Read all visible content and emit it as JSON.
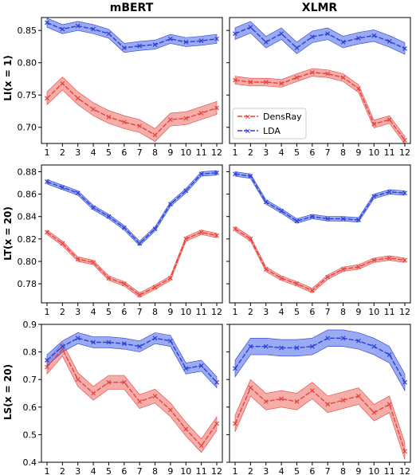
{
  "colors": {
    "densray": "#e8423c",
    "lda": "#2a3fd6",
    "densray_band": "#f08a85",
    "lda_band": "#6f86ee"
  },
  "column_titles": [
    "mBERT",
    "XLMR"
  ],
  "row_labels": [
    "LI(x = 1)",
    "LT(x = 20)",
    "LS(x = 20)"
  ],
  "legend": {
    "entries": [
      "DensRay",
      "LDA"
    ],
    "placement": "lower-left",
    "panel": 1
  },
  "chart_data": [
    {
      "type": "line",
      "panel": "r0c0",
      "x": [
        1,
        2,
        3,
        4,
        5,
        6,
        7,
        8,
        9,
        10,
        11,
        12
      ],
      "ylim": [
        0.675,
        0.87
      ],
      "yticks": [
        0.7,
        0.75,
        0.8,
        0.85
      ],
      "ytick_labels": [
        "0.70",
        "0.75",
        "0.80",
        "0.85"
      ],
      "series": [
        {
          "name": "DensRay",
          "values": [
            0.745,
            0.768,
            0.745,
            0.728,
            0.716,
            0.708,
            0.702,
            0.688,
            0.712,
            0.714,
            0.722,
            0.73
          ],
          "band": 0.01
        },
        {
          "name": "LDA",
          "values": [
            0.862,
            0.852,
            0.857,
            0.852,
            0.845,
            0.823,
            0.826,
            0.828,
            0.837,
            0.832,
            0.834,
            0.837
          ],
          "band": 0.007
        }
      ]
    },
    {
      "type": "line",
      "panel": "r0c1",
      "x": [
        1,
        2,
        3,
        4,
        5,
        6,
        7,
        8,
        9,
        10,
        11,
        12
      ],
      "ylim": [
        0.675,
        0.87
      ],
      "yticks": [
        0.7,
        0.75,
        0.8,
        0.85
      ],
      "ytick_labels": [],
      "series": [
        {
          "name": "DensRay",
          "values": [
            0.773,
            0.77,
            0.77,
            0.768,
            0.777,
            0.785,
            0.783,
            0.777,
            0.76,
            0.705,
            0.712,
            0.68
          ],
          "band": 0.006
        },
        {
          "name": "LDA",
          "values": [
            0.845,
            0.855,
            0.832,
            0.845,
            0.823,
            0.84,
            0.845,
            0.832,
            0.838,
            0.842,
            0.833,
            0.822
          ],
          "band": 0.009
        }
      ]
    },
    {
      "type": "line",
      "panel": "r1c0",
      "x": [
        1,
        2,
        3,
        4,
        5,
        6,
        7,
        8,
        9,
        10,
        11,
        12
      ],
      "ylim": [
        0.763,
        0.886
      ],
      "yticks": [
        0.78,
        0.8,
        0.82,
        0.84,
        0.86,
        0.88
      ],
      "ytick_labels": [
        "0.78",
        "0.80",
        "0.82",
        "0.84",
        "0.86",
        "0.88"
      ],
      "series": [
        {
          "name": "DensRay",
          "values": [
            0.826,
            0.816,
            0.802,
            0.799,
            0.785,
            0.78,
            0.77,
            0.777,
            0.785,
            0.82,
            0.826,
            0.823
          ],
          "band": 0.002
        },
        {
          "name": "LDA",
          "values": [
            0.871,
            0.866,
            0.861,
            0.848,
            0.84,
            0.83,
            0.816,
            0.829,
            0.851,
            0.863,
            0.878,
            0.879
          ],
          "band": 0.002
        }
      ]
    },
    {
      "type": "line",
      "panel": "r1c1",
      "x": [
        1,
        2,
        3,
        4,
        5,
        6,
        7,
        8,
        9,
        10,
        11,
        12
      ],
      "ylim": [
        0.763,
        0.886
      ],
      "yticks": [
        0.78,
        0.8,
        0.82,
        0.84,
        0.86,
        0.88
      ],
      "ytick_labels": [],
      "series": [
        {
          "name": "DensRay",
          "values": [
            0.829,
            0.82,
            0.793,
            0.785,
            0.78,
            0.774,
            0.786,
            0.793,
            0.795,
            0.801,
            0.803,
            0.801
          ],
          "band": 0.002
        },
        {
          "name": "LDA",
          "values": [
            0.878,
            0.876,
            0.853,
            0.845,
            0.836,
            0.84,
            0.838,
            0.838,
            0.837,
            0.858,
            0.862,
            0.861
          ],
          "band": 0.002
        }
      ]
    },
    {
      "type": "line",
      "panel": "r2c0",
      "x": [
        1,
        2,
        3,
        4,
        5,
        6,
        7,
        8,
        9,
        10,
        11,
        12
      ],
      "ylim": [
        0.4,
        0.9
      ],
      "yticks": [
        0.4,
        0.5,
        0.6,
        0.7,
        0.8,
        0.9
      ],
      "ytick_labels": [
        "0.4",
        "0.5",
        "0.6",
        "0.7",
        "0.8",
        "0.9"
      ],
      "series": [
        {
          "name": "DensRay",
          "values": [
            0.745,
            0.81,
            0.7,
            0.65,
            0.69,
            0.69,
            0.62,
            0.64,
            0.59,
            0.52,
            0.46,
            0.54
          ],
          "band": 0.025
        },
        {
          "name": "LDA",
          "values": [
            0.77,
            0.82,
            0.85,
            0.835,
            0.835,
            0.83,
            0.82,
            0.85,
            0.84,
            0.74,
            0.75,
            0.69
          ],
          "band": 0.02
        }
      ]
    },
    {
      "type": "line",
      "panel": "r2c1",
      "x": [
        1,
        2,
        3,
        4,
        5,
        6,
        7,
        8,
        9,
        10,
        11,
        12
      ],
      "ylim": [
        0.4,
        0.9
      ],
      "yticks": [
        0.4,
        0.5,
        0.6,
        0.7,
        0.8,
        0.9
      ],
      "ytick_labels": [],
      "series": [
        {
          "name": "DensRay",
          "values": [
            0.54,
            0.67,
            0.62,
            0.63,
            0.62,
            0.66,
            0.61,
            0.625,
            0.64,
            0.58,
            0.61,
            0.44
          ],
          "band": 0.03
        },
        {
          "name": "LDA",
          "values": [
            0.74,
            0.82,
            0.82,
            0.815,
            0.815,
            0.82,
            0.85,
            0.85,
            0.84,
            0.82,
            0.79,
            0.69
          ],
          "band": 0.03
        }
      ]
    }
  ]
}
